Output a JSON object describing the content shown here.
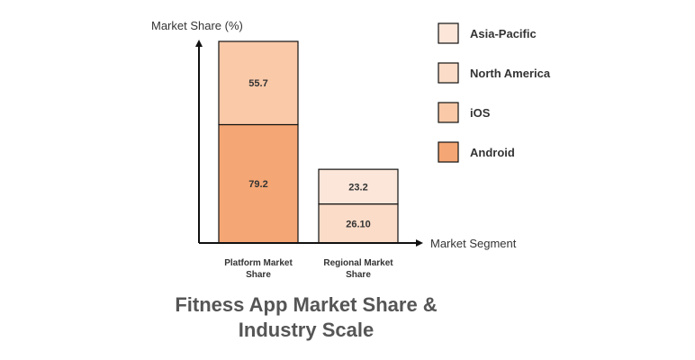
{
  "chart_data": {
    "type": "bar",
    "stacked": true,
    "title_lines": [
      "Fitness App Market Share &",
      "Industry Scale"
    ],
    "xlabel": "Market Segment",
    "ylabel": "Market Share (%)",
    "categories": [
      [
        "Platform Market",
        "Share"
      ],
      [
        "Regional Market",
        "Share"
      ]
    ],
    "stacks": [
      {
        "segments": [
          {
            "series": "Android",
            "value": 79.2,
            "label": "79.2"
          },
          {
            "series": "iOS",
            "value": 55.7,
            "label": "55.7"
          }
        ]
      },
      {
        "segments": [
          {
            "series": "North America",
            "value": 26.1,
            "label": "26.10"
          },
          {
            "series": "Asia-Pacific",
            "value": 23.2,
            "label": "23.2"
          }
        ]
      }
    ],
    "legend": [
      {
        "name": "Asia-Pacific",
        "color": "#fbe6d9"
      },
      {
        "name": "North America",
        "color": "#fbdcc8"
      },
      {
        "name": "iOS",
        "color": "#f9c9a8"
      },
      {
        "name": "Android",
        "color": "#f4a674"
      }
    ],
    "legend_position": "right",
    "grid": false
  }
}
